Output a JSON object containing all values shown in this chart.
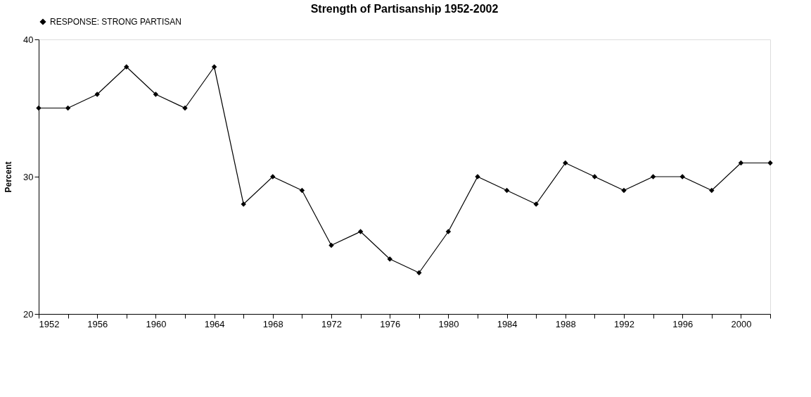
{
  "chart_data": {
    "type": "line",
    "title": "Strength of Partisanship 1952-2002",
    "ylabel": "Percent",
    "x": [
      1952,
      1954,
      1956,
      1958,
      1960,
      1962,
      1964,
      1966,
      1968,
      1970,
      1972,
      1974,
      1976,
      1978,
      1980,
      1982,
      1984,
      1986,
      1988,
      1990,
      1992,
      1994,
      1996,
      1998,
      2000,
      2002
    ],
    "series": [
      {
        "name": "RESPONSE: STRONG PARTISAN",
        "color": "#000000",
        "values": [
          35,
          35,
          36,
          38,
          36,
          35,
          38,
          28,
          30,
          29,
          25,
          26,
          24,
          23,
          26,
          30,
          29,
          28,
          31,
          30,
          29,
          30,
          30,
          29,
          31,
          31
        ]
      }
    ],
    "xlim": [
      1952,
      2002
    ],
    "xticks": [
      1952,
      {
        "value": 1954,
        "label": null
      },
      1956,
      {
        "value": 1958,
        "label": null
      },
      1960,
      {
        "value": 1962,
        "label": null
      },
      1964,
      {
        "value": 1966,
        "label": null
      },
      1968,
      {
        "value": 1970,
        "label": null
      },
      1972,
      {
        "value": 1974,
        "label": null
      },
      1976,
      {
        "value": 1978,
        "label": null
      },
      1980,
      {
        "value": 1982,
        "label": null
      },
      1984,
      {
        "value": 1986,
        "label": null
      },
      1988,
      {
        "value": 1990,
        "label": null
      },
      1992,
      {
        "value": 1994,
        "label": null
      },
      1996,
      {
        "value": 1998,
        "label": null
      },
      2000,
      {
        "value": 2002,
        "label": null
      }
    ],
    "ylim": [
      20,
      40
    ],
    "yticks": [
      20,
      30,
      40
    ],
    "grid": false,
    "legend": "top",
    "marker": "diamond",
    "line_style": "solid"
  }
}
